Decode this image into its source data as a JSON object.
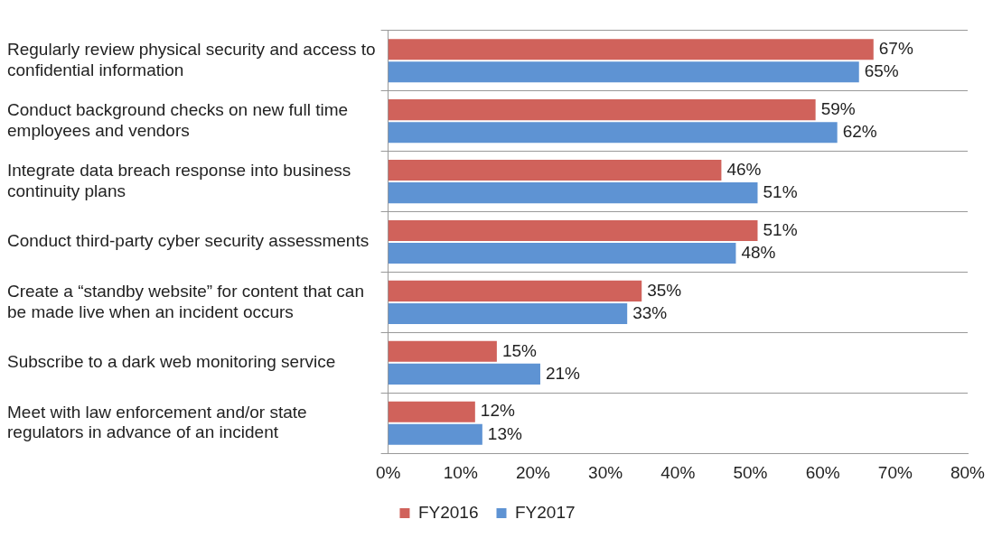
{
  "chart_data": {
    "type": "bar",
    "orientation": "horizontal",
    "categories": [
      "Regularly review physical security and access to confidential information",
      "Conduct background checks on new full time employees and vendors",
      "Integrate data breach response into business continuity plans",
      "Conduct third-party cyber security assessments",
      "Create a “standby website” for content that can be made live when an incident occurs",
      "Subscribe to a dark web monitoring service",
      "Meet with law enforcement and/or state regulators in advance of an incident"
    ],
    "series": [
      {
        "name": "FY2016",
        "color": "#d0625b",
        "values": [
          67,
          59,
          46,
          51,
          35,
          15,
          12
        ],
        "value_labels": [
          "67%",
          "59%",
          "46%",
          "51%",
          "35%",
          "15%",
          "12%"
        ]
      },
      {
        "name": "FY2017",
        "color": "#5e93d3",
        "values": [
          65,
          62,
          51,
          48,
          33,
          21,
          13
        ],
        "value_labels": [
          "65%",
          "62%",
          "51%",
          "48%",
          "33%",
          "21%",
          "13%"
        ]
      }
    ],
    "xlim": [
      0,
      80
    ],
    "xticks": [
      {
        "value": 0,
        "label": "0%"
      },
      {
        "value": 10,
        "label": "10%"
      },
      {
        "value": 20,
        "label": "20%"
      },
      {
        "value": 30,
        "label": "30%"
      },
      {
        "value": 40,
        "label": "40%"
      },
      {
        "value": 50,
        "label": "50%"
      },
      {
        "value": 60,
        "label": "60%"
      },
      {
        "value": 70,
        "label": "70%"
      },
      {
        "value": 80,
        "label": "80%"
      }
    ],
    "grid": "y",
    "legend": "bottom"
  }
}
